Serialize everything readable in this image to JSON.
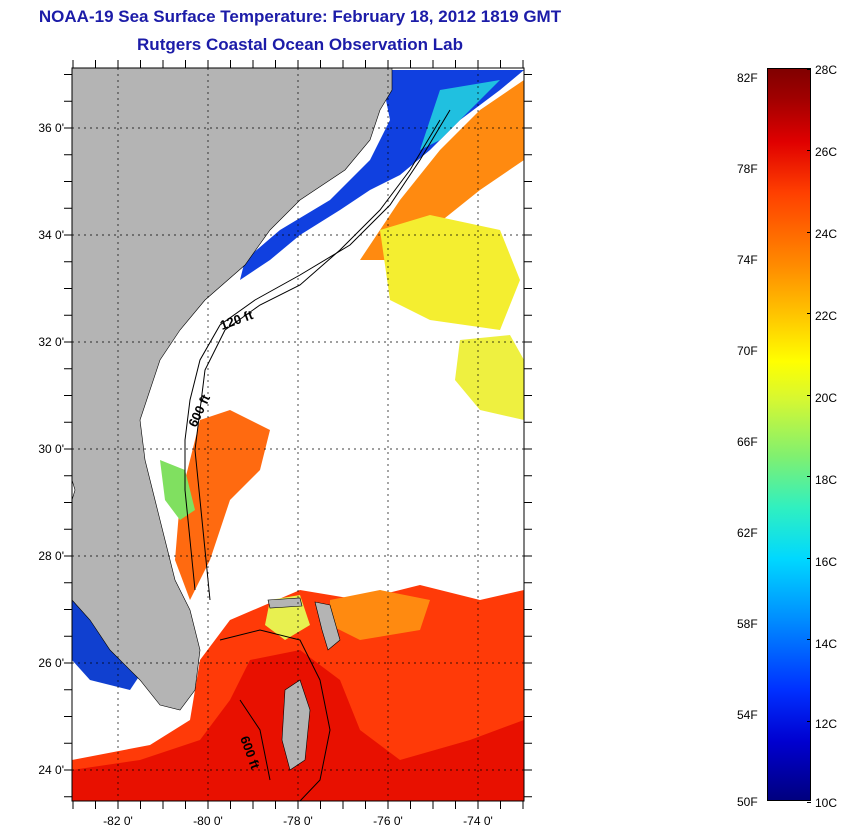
{
  "title": {
    "line1": "NOAA-19 Sea Surface Temperature:  February 18, 2012 1819 GMT",
    "line2": "Rutgers Coastal Ocean Observation Lab"
  },
  "map": {
    "lon_labels": [
      "-82 0'",
      "-80 0'",
      "-78 0'",
      "-76 0'",
      "-74 0'"
    ],
    "lat_labels": [
      "36 0'",
      "34 0'",
      "32 0'",
      "30 0'",
      "28 0'",
      "26 0'",
      "24 0'"
    ],
    "contour_labels": {
      "shelf_north": "120 ft",
      "shelf_mid": "600 ft",
      "bahamas": "600 ft"
    },
    "colors": {
      "land": "#b4b4b4",
      "clouds": "#ffffff",
      "warm": "#ff3000",
      "hot": "#e81000",
      "orange": "#ff8a10",
      "yellow": "#f4ee30",
      "cold": "#1040e0"
    }
  },
  "colorbar": {
    "fahrenheit": [
      "82F",
      "78F",
      "74F",
      "70F",
      "66F",
      "62F",
      "58F",
      "54F",
      "50F"
    ],
    "celsius": [
      "28C",
      "26C",
      "24C",
      "22C",
      "20C",
      "18C",
      "16C",
      "14C",
      "12C",
      "10C"
    ]
  }
}
